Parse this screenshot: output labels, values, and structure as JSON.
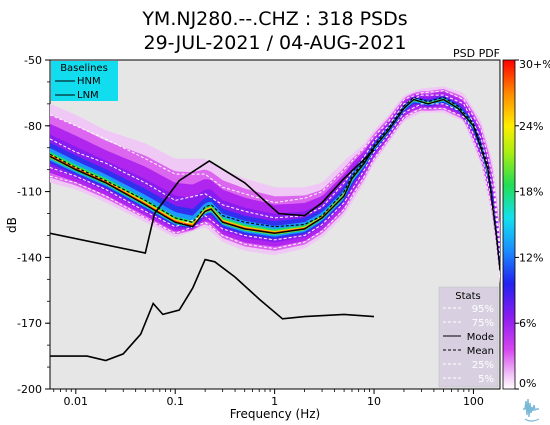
{
  "chart_data": {
    "type": "heatmap",
    "title_line1": "YM.NJ280.--.CHZ : 318 PSDs",
    "title_line2": "29-JUL-2021 / 04-AUG-2021",
    "corner_label": "PSD PDF",
    "xlabel": "Frequency (Hz)",
    "ylabel": "dB",
    "x_scale": "log",
    "xlim_hz": [
      0.0055,
      185
    ],
    "ylim": [
      -200,
      -50
    ],
    "x_ticks": [
      {
        "value": 0.01,
        "label": "0.01"
      },
      {
        "value": 0.1,
        "label": "0.1"
      },
      {
        "value": 1,
        "label": "1"
      },
      {
        "value": 10,
        "label": "10"
      },
      {
        "value": 100,
        "label": "100"
      }
    ],
    "y_ticks": [
      {
        "value": -50,
        "label": "-50"
      },
      {
        "value": -80,
        "label": "-80"
      },
      {
        "value": -110,
        "label": "-110"
      },
      {
        "value": -140,
        "label": "-140"
      },
      {
        "value": -170,
        "label": "-170"
      },
      {
        "value": -200,
        "label": "-200"
      }
    ],
    "colorbar": {
      "min": 0,
      "max": 30,
      "ticks": [
        {
          "value": 0,
          "label": "0%"
        },
        {
          "value": 6,
          "label": "6%"
        },
        {
          "value": 12,
          "label": "12%"
        },
        {
          "value": 18,
          "label": "18%"
        },
        {
          "value": 24,
          "label": "24%"
        },
        {
          "value": 30,
          "label": "30+%"
        }
      ]
    },
    "baselines_legend": {
      "title": "Baselines",
      "items": [
        "HNM",
        "LNM"
      ],
      "color": "#11ddee"
    },
    "stats_legend": {
      "title": "Stats",
      "items": [
        {
          "label": "95%",
          "style": "white-dashed"
        },
        {
          "label": "75%",
          "style": "white-dashed"
        },
        {
          "label": "Mode",
          "style": "black-solid"
        },
        {
          "label": "Mean",
          "style": "black-dashed"
        },
        {
          "label": "25%",
          "style": "white-dashed"
        },
        {
          "label": "5%",
          "style": "white-dashed"
        }
      ]
    },
    "series": [
      {
        "name": "HNM",
        "points": [
          [
            0.0055,
            -129
          ],
          [
            0.05,
            -138
          ],
          [
            0.062,
            -120
          ],
          [
            0.11,
            -105
          ],
          [
            0.22,
            -96
          ],
          [
            0.5,
            -106
          ],
          [
            1.1,
            -120
          ],
          [
            2,
            -121
          ],
          [
            3,
            -115
          ],
          [
            5,
            -104
          ],
          [
            10,
            -91
          ]
        ]
      },
      {
        "name": "LNM",
        "points": [
          [
            0.0055,
            -185
          ],
          [
            0.013,
            -185
          ],
          [
            0.02,
            -187
          ],
          [
            0.03,
            -184
          ],
          [
            0.045,
            -175
          ],
          [
            0.06,
            -161
          ],
          [
            0.075,
            -166
          ],
          [
            0.11,
            -164
          ],
          [
            0.15,
            -154
          ],
          [
            0.2,
            -141
          ],
          [
            0.25,
            -142
          ],
          [
            0.4,
            -149
          ],
          [
            0.7,
            -159
          ],
          [
            1.2,
            -168
          ],
          [
            2,
            -167
          ],
          [
            5,
            -166
          ],
          [
            10,
            -167
          ]
        ]
      },
      {
        "name": "Mode",
        "points": [
          [
            0.0055,
            -94
          ],
          [
            0.01,
            -100
          ],
          [
            0.02,
            -106
          ],
          [
            0.05,
            -116
          ],
          [
            0.1,
            -124
          ],
          [
            0.15,
            -126
          ],
          [
            0.2,
            -119
          ],
          [
            0.23,
            -118
          ],
          [
            0.3,
            -124
          ],
          [
            0.5,
            -127
          ],
          [
            1,
            -129
          ],
          [
            2,
            -127
          ],
          [
            3,
            -122
          ],
          [
            5,
            -112
          ],
          [
            6,
            -104
          ],
          [
            8,
            -97
          ],
          [
            10,
            -90
          ],
          [
            14,
            -82
          ],
          [
            20,
            -72
          ],
          [
            25,
            -68
          ],
          [
            35,
            -70
          ],
          [
            50,
            -68
          ],
          [
            70,
            -72
          ],
          [
            100,
            -80
          ],
          [
            140,
            -100
          ],
          [
            170,
            -130
          ],
          [
            185,
            -146
          ]
        ]
      },
      {
        "name": "Mean",
        "points": [
          [
            0.0055,
            -93
          ],
          [
            0.01,
            -99
          ],
          [
            0.02,
            -105
          ],
          [
            0.05,
            -114
          ],
          [
            0.1,
            -122
          ],
          [
            0.15,
            -124
          ],
          [
            0.2,
            -117
          ],
          [
            0.23,
            -116
          ],
          [
            0.3,
            -121
          ],
          [
            0.5,
            -124
          ],
          [
            1,
            -126
          ],
          [
            2,
            -125
          ],
          [
            3,
            -121
          ],
          [
            5,
            -110
          ],
          [
            6,
            -103
          ],
          [
            8,
            -96
          ],
          [
            10,
            -89
          ],
          [
            14,
            -81
          ],
          [
            20,
            -71
          ],
          [
            25,
            -67
          ],
          [
            35,
            -69
          ],
          [
            50,
            -67
          ],
          [
            70,
            -71
          ],
          [
            100,
            -79
          ],
          [
            140,
            -98
          ],
          [
            170,
            -128
          ],
          [
            185,
            -144
          ]
        ]
      },
      {
        "name": "95%",
        "points": [
          [
            0.0055,
            -75
          ],
          [
            0.01,
            -80
          ],
          [
            0.02,
            -86
          ],
          [
            0.05,
            -95
          ],
          [
            0.1,
            -102
          ],
          [
            0.2,
            -102
          ],
          [
            0.3,
            -108
          ],
          [
            0.5,
            -111
          ],
          [
            1,
            -115
          ],
          [
            2,
            -113
          ],
          [
            3,
            -110
          ],
          [
            5,
            -100
          ],
          [
            8,
            -90
          ],
          [
            10,
            -85
          ],
          [
            14,
            -78
          ],
          [
            20,
            -68
          ],
          [
            30,
            -65
          ],
          [
            50,
            -64
          ],
          [
            80,
            -68
          ],
          [
            120,
            -82
          ],
          [
            160,
            -105
          ],
          [
            185,
            -135
          ]
        ]
      },
      {
        "name": "75%",
        "points": [
          [
            0.0055,
            -86
          ],
          [
            0.01,
            -92
          ],
          [
            0.02,
            -97
          ],
          [
            0.05,
            -106
          ],
          [
            0.1,
            -114
          ],
          [
            0.2,
            -111
          ],
          [
            0.3,
            -116
          ],
          [
            0.5,
            -119
          ],
          [
            1,
            -122
          ],
          [
            2,
            -121
          ],
          [
            3,
            -117
          ],
          [
            5,
            -106
          ],
          [
            8,
            -94
          ],
          [
            10,
            -87
          ],
          [
            14,
            -80
          ],
          [
            20,
            -70
          ],
          [
            30,
            -66
          ],
          [
            50,
            -66
          ],
          [
            80,
            -70
          ],
          [
            120,
            -86
          ],
          [
            160,
            -110
          ],
          [
            185,
            -140
          ]
        ]
      },
      {
        "name": "25%",
        "points": [
          [
            0.0055,
            -99
          ],
          [
            0.01,
            -103
          ],
          [
            0.02,
            -109
          ],
          [
            0.05,
            -119
          ],
          [
            0.1,
            -126
          ],
          [
            0.2,
            -121
          ],
          [
            0.3,
            -127
          ],
          [
            0.5,
            -130
          ],
          [
            1,
            -132
          ],
          [
            2,
            -130
          ],
          [
            3,
            -125
          ],
          [
            5,
            -115
          ],
          [
            8,
            -100
          ],
          [
            10,
            -92
          ],
          [
            14,
            -84
          ],
          [
            20,
            -74
          ],
          [
            30,
            -70
          ],
          [
            50,
            -70
          ],
          [
            80,
            -74
          ],
          [
            120,
            -92
          ],
          [
            160,
            -118
          ],
          [
            185,
            -148
          ]
        ]
      },
      {
        "name": "5%",
        "points": [
          [
            0.0055,
            -103
          ],
          [
            0.01,
            -106
          ],
          [
            0.02,
            -112
          ],
          [
            0.05,
            -122
          ],
          [
            0.1,
            -129
          ],
          [
            0.2,
            -124
          ],
          [
            0.3,
            -130
          ],
          [
            0.5,
            -134
          ],
          [
            1,
            -136
          ],
          [
            2,
            -133
          ],
          [
            3,
            -128
          ],
          [
            5,
            -118
          ],
          [
            8,
            -103
          ],
          [
            10,
            -95
          ],
          [
            14,
            -86
          ],
          [
            20,
            -76
          ],
          [
            30,
            -72
          ],
          [
            50,
            -72
          ],
          [
            80,
            -76
          ],
          [
            120,
            -95
          ],
          [
            160,
            -122
          ],
          [
            185,
            -150
          ]
        ]
      }
    ],
    "density_band": {
      "description_free": true,
      "upper": [
        [
          0.0055,
          -70
        ],
        [
          0.01,
          -75
        ],
        [
          0.02,
          -82
        ],
        [
          0.05,
          -88
        ],
        [
          0.1,
          -95
        ],
        [
          0.2,
          -95
        ],
        [
          0.3,
          -100
        ],
        [
          0.5,
          -104
        ],
        [
          1,
          -108
        ],
        [
          2,
          -108
        ],
        [
          3,
          -106
        ],
        [
          5,
          -96
        ],
        [
          8,
          -88
        ],
        [
          10,
          -82
        ],
        [
          14,
          -75
        ],
        [
          20,
          -66
        ],
        [
          30,
          -63
        ],
        [
          50,
          -62
        ],
        [
          80,
          -65
        ],
        [
          120,
          -78
        ],
        [
          160,
          -98
        ],
        [
          185,
          -125
        ]
      ],
      "lower": [
        [
          0.0055,
          -106
        ],
        [
          0.01,
          -109
        ],
        [
          0.02,
          -115
        ],
        [
          0.05,
          -124
        ],
        [
          0.1,
          -131
        ],
        [
          0.2,
          -126
        ],
        [
          0.3,
          -133
        ],
        [
          0.5,
          -137
        ],
        [
          1,
          -139
        ],
        [
          2,
          -136
        ],
        [
          3,
          -131
        ],
        [
          5,
          -121
        ],
        [
          8,
          -106
        ],
        [
          10,
          -97
        ],
        [
          14,
          -88
        ],
        [
          20,
          -78
        ],
        [
          30,
          -74
        ],
        [
          50,
          -74
        ],
        [
          80,
          -78
        ],
        [
          120,
          -98
        ],
        [
          160,
          -125
        ],
        [
          185,
          -152
        ]
      ]
    }
  }
}
